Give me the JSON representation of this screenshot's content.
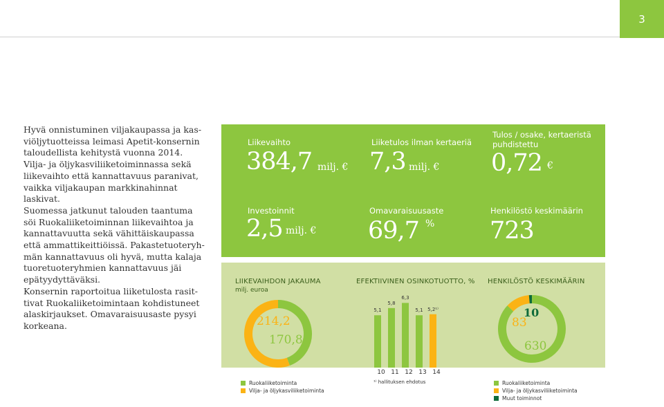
{
  "page_number": "3",
  "intro": {
    "p1": "Hyvä onnistuminen viljakaupassa ja kas­viöljytuotteissa leimasi Apetit-konsernin taloudellista kehitystä vuonna 2014.",
    "p2": "Vilja- ja öljykasviliiketoiminnassa sekä liikevaihto että kannattavuus paranivat, vaikka viljakaupan markkinahinnat laskivat.",
    "p3": "Suomessa jatkunut talouden taantuma söi Ruokaliiketoiminnan liikevaihtoa ja kannattavuutta sekä vähittäiskaupassa että ammattikeittiöissä. Pakastetuoteryh­män kannattavuus oli hyvä, mutta kala­ja tuoretuoteryhmien kannattavuus jäi epätyydyttäväksi.",
    "p4": "Konsernin raportoitua liiketulosta rasit­tivat Ruokaliiketoimintaan kohdistuneet alaskirjaukset. Omavaraisuusaste pysyi korkeana."
  },
  "kpis": {
    "revenue": {
      "label": "Liikevaihto",
      "value": "384,7",
      "unit": "milj. €"
    },
    "ebit": {
      "label": "Liiketulos ilman kertaeriä",
      "value": "7,3",
      "unit": "milj. €"
    },
    "eps": {
      "label": "Tulos / osake, kertaeristä puhdistettu",
      "value": "0,72",
      "unit": "€"
    },
    "investments": {
      "label": "Investoinnit",
      "value": "2,5",
      "unit": "milj. €"
    },
    "equity_ratio": {
      "label": "Omavaraisuusaste",
      "value": "69,7",
      "unit": "%"
    },
    "personnel": {
      "label": "Henkilöstö keskimäärin",
      "value": "723"
    }
  },
  "charts": {
    "revenue_split": {
      "title": "LIIKEVAIHDON JAKAUMA",
      "subtitle": "milj. euroa"
    },
    "dividend": {
      "title": "EFEKTIIVINEN OSINKOTUOTTO, %",
      "footnote": "¹⁾ hallituksen ehdotus"
    },
    "personnel": {
      "title": "HENKILÖSTÖ KESKIMÄÄRIN"
    }
  },
  "legends": {
    "revenue": [
      "Ruokaliiketoiminta",
      "Vilja- ja öljykasviliiketoiminta"
    ],
    "personnel": [
      "Ruokaliiketoiminta",
      "Vilja- ja öljykasviliiketoiminta",
      "Muut toiminnot"
    ]
  },
  "colors": {
    "green": "#8dc63f",
    "orange": "#fbb315",
    "dark_green": "#0e6b3a",
    "light_green": "#d1dfa4"
  },
  "chart_data": [
    {
      "type": "pie",
      "title": "LIIKEVAIHDON JAKAUMA",
      "subtitle": "milj. euroa",
      "labels": [
        "Ruokaliiketoiminta",
        "Vilja- ja öljykasviliiketoiminta"
      ],
      "values": [
        170.8,
        214.2
      ],
      "value_labels": [
        "170,8",
        "214,2"
      ],
      "colors": [
        "#8dc63f",
        "#fbb315"
      ]
    },
    {
      "type": "bar",
      "title": "EFEKTIIVINEN OSINKOTUOTTO, %",
      "categories": [
        "10",
        "11",
        "12",
        "13",
        "14"
      ],
      "values": [
        5.1,
        5.8,
        6.3,
        5.1,
        5.2
      ],
      "value_labels": [
        "5,1",
        "5,8",
        "6,3",
        "5,1",
        "5,2¹⁾"
      ],
      "colors": [
        "#8dc63f",
        "#8dc63f",
        "#8dc63f",
        "#8dc63f",
        "#fbb315"
      ],
      "ylim": [
        0,
        7
      ]
    },
    {
      "type": "pie",
      "title": "HENKILÖSTÖ KESKIMÄÄRIN",
      "labels": [
        "Ruokaliiketoiminta",
        "Vilja- ja öljykasviliiketoiminta",
        "Muut toiminnot"
      ],
      "values": [
        630,
        83,
        10
      ],
      "value_labels": [
        "630",
        "83",
        "10"
      ],
      "colors": [
        "#8dc63f",
        "#fbb315",
        "#0e6b3a"
      ]
    }
  ]
}
